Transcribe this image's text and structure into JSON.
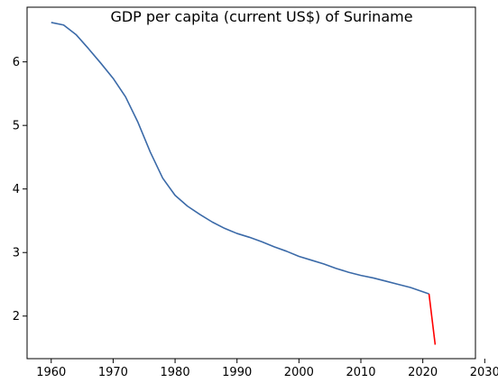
{
  "chart_data": {
    "type": "line",
    "title": "GDP per capita (current US$) of Suriname",
    "xlabel": "",
    "ylabel": "",
    "xlim": [
      1956.1,
      2028.5
    ],
    "ylim": [
      1.33,
      6.86
    ],
    "xticks": [
      1960,
      1970,
      1980,
      1990,
      2000,
      2010,
      2020,
      2030
    ],
    "yticks": [
      2,
      3,
      4,
      5,
      6
    ],
    "grid": false,
    "legend": "none",
    "series": [
      {
        "color": "#3b6aa8",
        "points": [
          [
            1960,
            6.62
          ],
          [
            1962,
            6.58
          ],
          [
            1964,
            6.43
          ],
          [
            1966,
            6.21
          ],
          [
            1968,
            5.98
          ],
          [
            1970,
            5.74
          ],
          [
            1972,
            5.45
          ],
          [
            1974,
            5.05
          ],
          [
            1976,
            4.58
          ],
          [
            1978,
            4.17
          ],
          [
            1980,
            3.9
          ],
          [
            1982,
            3.73
          ],
          [
            1984,
            3.6
          ],
          [
            1986,
            3.48
          ],
          [
            1988,
            3.38
          ],
          [
            1990,
            3.3
          ],
          [
            1992,
            3.24
          ],
          [
            1994,
            3.17
          ],
          [
            1996,
            3.09
          ],
          [
            1998,
            3.02
          ],
          [
            2000,
            2.94
          ],
          [
            2002,
            2.88
          ],
          [
            2004,
            2.82
          ],
          [
            2006,
            2.75
          ],
          [
            2008,
            2.69
          ],
          [
            2010,
            2.64
          ],
          [
            2012,
            2.6
          ],
          [
            2014,
            2.55
          ],
          [
            2016,
            2.5
          ],
          [
            2018,
            2.45
          ],
          [
            2021,
            2.35
          ]
        ]
      },
      {
        "color": "#ff0000",
        "points": [
          [
            2021,
            2.35
          ],
          [
            2022,
            1.55
          ]
        ]
      }
    ]
  }
}
